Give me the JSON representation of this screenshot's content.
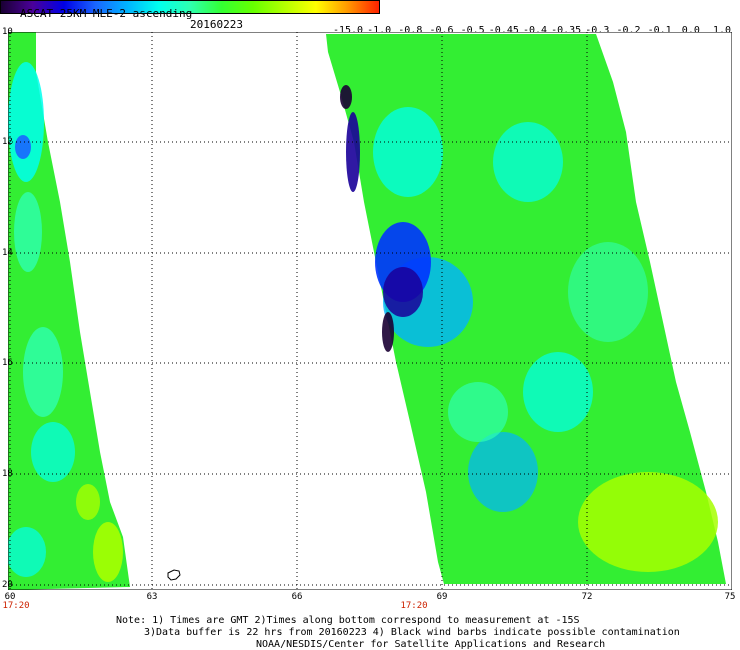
{
  "header": {
    "title": "ASCAT 25KM MLE-2 ascending",
    "date": "20160223"
  },
  "colorbar": {
    "labels": [
      "-15.0",
      "-1.0",
      "-0.8",
      "-0.6",
      "-0.5",
      "-0.45",
      "-0.4",
      "-0.35",
      "-0.3",
      "-0.2",
      "-0.1",
      "0.0",
      "1.0"
    ],
    "colors": [
      "#1a0033",
      "#4a0099",
      "#0000e6",
      "#1a66ff",
      "#00b3ff",
      "#00ffee",
      "#2effb0",
      "#33ff33",
      "#66ff00",
      "#b3ff00",
      "#ffff00",
      "#ff9900",
      "#ff2200"
    ]
  },
  "map": {
    "lat_labels": [
      "10",
      "12",
      "14",
      "16",
      "18",
      "20"
    ],
    "lon_labels": [
      "60",
      "63",
      "66",
      "69",
      "72",
      "75"
    ],
    "time_labels": [
      "17:20",
      "17:20"
    ]
  },
  "notes": {
    "line1": "Note: 1) Times are GMT 2)Times along bottom correspond to measurement at -15S",
    "line2": "3)Data buffer is 22 hrs from 20160223 4) Black wind barbs indicate possible contamination",
    "line3": "NOAA/NESDIS/Center for Satellite Applications and Research"
  }
}
